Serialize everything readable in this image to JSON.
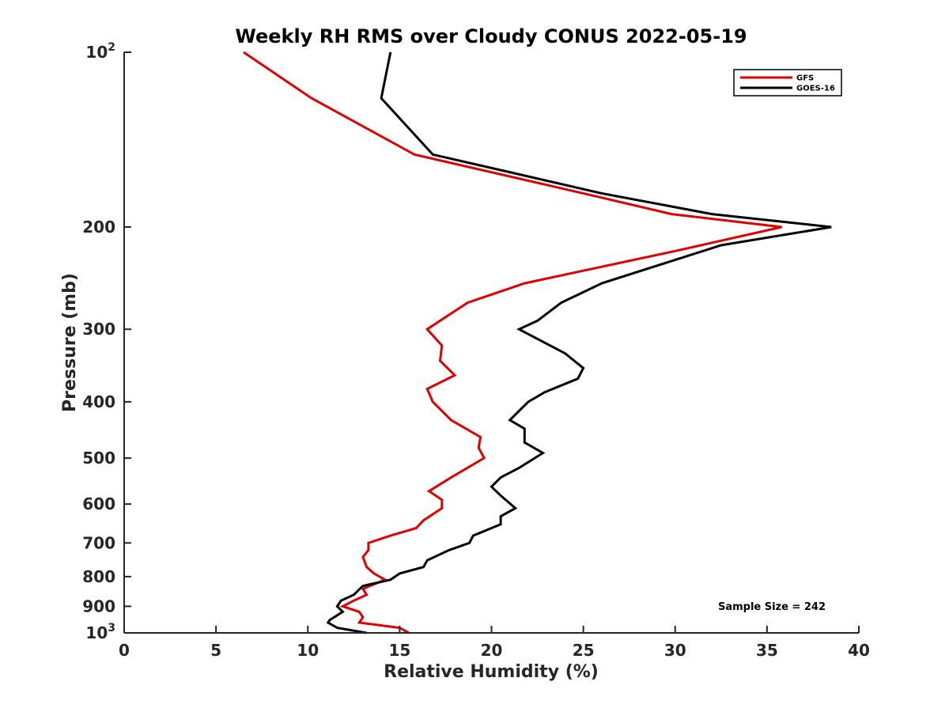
{
  "chart_data": {
    "type": "line",
    "title": "Weekly RH RMS over Cloudy CONUS 2022-05-19",
    "xlabel": "Relative Humidity (%)",
    "ylabel": "Pressure (mb)",
    "xlim": [
      0,
      40
    ],
    "ylim": [
      100,
      1000
    ],
    "y_scale": "log",
    "y_reversed": true,
    "grid": false,
    "legend_position": "top-right",
    "x_ticks": [
      0,
      5,
      10,
      15,
      20,
      25,
      30,
      35,
      40
    ],
    "y_ticks": [
      {
        "value": 100,
        "base": "10",
        "exp": "2",
        "label": ""
      },
      {
        "value": 200,
        "label": "200"
      },
      {
        "value": 300,
        "label": "300"
      },
      {
        "value": 400,
        "label": "400"
      },
      {
        "value": 500,
        "label": "500"
      },
      {
        "value": 600,
        "label": "600"
      },
      {
        "value": 700,
        "label": "700"
      },
      {
        "value": 800,
        "label": "800"
      },
      {
        "value": 900,
        "label": "900"
      },
      {
        "value": 1000,
        "base": "10",
        "exp": "3",
        "label": ""
      }
    ],
    "annotation": "Sample Size = 242",
    "series": [
      {
        "name": "GFS",
        "color": "#e00000",
        "points": [
          [
            6.5,
            100
          ],
          [
            10.2,
            120
          ],
          [
            15.8,
            150
          ],
          [
            25.0,
            175
          ],
          [
            29.8,
            190
          ],
          [
            35.8,
            200
          ],
          [
            30.0,
            220
          ],
          [
            21.8,
            250
          ],
          [
            18.7,
            270
          ],
          [
            17.2,
            290
          ],
          [
            16.5,
            300
          ],
          [
            17.3,
            320
          ],
          [
            17.2,
            340
          ],
          [
            18.0,
            360
          ],
          [
            16.5,
            380
          ],
          [
            16.8,
            400
          ],
          [
            17.8,
            430
          ],
          [
            19.4,
            460
          ],
          [
            19.3,
            480
          ],
          [
            19.6,
            500
          ],
          [
            17.8,
            540
          ],
          [
            16.6,
            570
          ],
          [
            17.3,
            590
          ],
          [
            17.3,
            610
          ],
          [
            16.3,
            640
          ],
          [
            15.9,
            660
          ],
          [
            14.5,
            680
          ],
          [
            13.3,
            700
          ],
          [
            13.3,
            720
          ],
          [
            13.0,
            740
          ],
          [
            13.2,
            770
          ],
          [
            13.6,
            790
          ],
          [
            14.2,
            810
          ],
          [
            13.0,
            840
          ],
          [
            13.2,
            860
          ],
          [
            12.5,
            880
          ],
          [
            11.9,
            900
          ],
          [
            12.8,
            920
          ],
          [
            13.0,
            940
          ],
          [
            12.8,
            960
          ],
          [
            15.0,
            980
          ],
          [
            15.5,
            1000
          ]
        ]
      },
      {
        "name": "GOES-16",
        "color": "#000000",
        "points": [
          [
            14.5,
            100
          ],
          [
            14.0,
            120
          ],
          [
            16.8,
            150
          ],
          [
            26.0,
            175
          ],
          [
            32.0,
            190
          ],
          [
            38.5,
            200
          ],
          [
            32.5,
            215
          ],
          [
            26.0,
            250
          ],
          [
            23.8,
            270
          ],
          [
            22.5,
            290
          ],
          [
            21.5,
            300
          ],
          [
            24.0,
            330
          ],
          [
            25.0,
            350
          ],
          [
            24.7,
            365
          ],
          [
            22.9,
            385
          ],
          [
            22.0,
            400
          ],
          [
            21.0,
            430
          ],
          [
            21.8,
            445
          ],
          [
            21.8,
            470
          ],
          [
            22.8,
            490
          ],
          [
            21.5,
            520
          ],
          [
            20.5,
            540
          ],
          [
            20.0,
            560
          ],
          [
            20.5,
            580
          ],
          [
            21.3,
            610
          ],
          [
            20.5,
            630
          ],
          [
            20.5,
            650
          ],
          [
            19.0,
            680
          ],
          [
            18.8,
            700
          ],
          [
            17.7,
            720
          ],
          [
            16.5,
            750
          ],
          [
            16.3,
            770
          ],
          [
            15.0,
            790
          ],
          [
            14.5,
            810
          ],
          [
            13.0,
            830
          ],
          [
            12.5,
            860
          ],
          [
            11.8,
            880
          ],
          [
            11.6,
            900
          ],
          [
            11.9,
            920
          ],
          [
            11.2,
            950
          ],
          [
            11.1,
            960
          ],
          [
            11.6,
            980
          ],
          [
            13.2,
            1000
          ]
        ]
      }
    ]
  }
}
